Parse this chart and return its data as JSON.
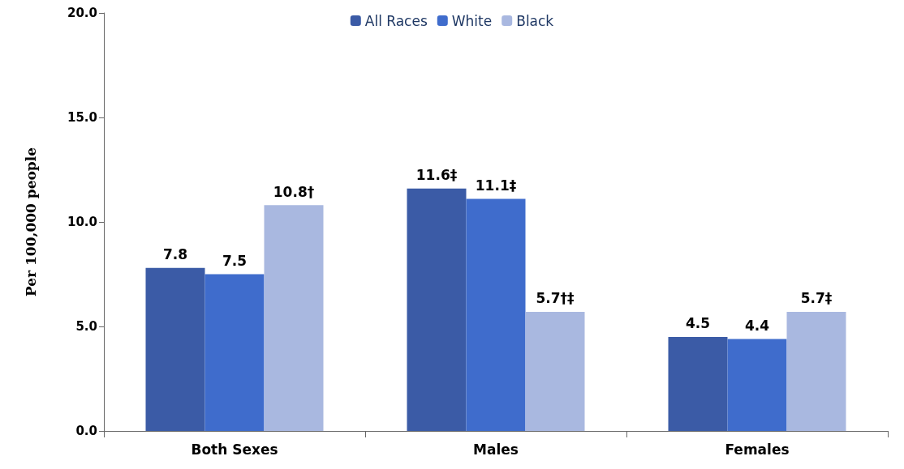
{
  "chart_data": {
    "type": "bar",
    "ylabel": "Per 100,000 people",
    "categories": [
      "Both Sexes",
      "Males",
      "Females"
    ],
    "series": [
      {
        "name": "All Races",
        "color": "#3b5ba6",
        "values": [
          7.8,
          11.6,
          4.5
        ],
        "value_labels": [
          "7.8",
          "11.6‡",
          "4.5"
        ]
      },
      {
        "name": "White",
        "color": "#3f6ccc",
        "values": [
          7.5,
          11.1,
          4.4
        ],
        "value_labels": [
          "7.5",
          "11.1‡",
          "4.4"
        ]
      },
      {
        "name": "Black",
        "color": "#a9b8e0",
        "values": [
          10.8,
          5.7,
          5.7
        ],
        "value_labels": [
          "10.8†",
          "5.7†‡",
          "5.7‡"
        ]
      }
    ],
    "ylim": [
      0,
      20
    ],
    "yticks": [
      {
        "value": 0,
        "label": "0.0"
      },
      {
        "value": 5,
        "label": "5.0"
      },
      {
        "value": 10,
        "label": "10.0"
      },
      {
        "value": 15,
        "label": "15.0"
      },
      {
        "value": 20,
        "label": "20.0"
      }
    ],
    "grid": false,
    "legend": "top"
  }
}
